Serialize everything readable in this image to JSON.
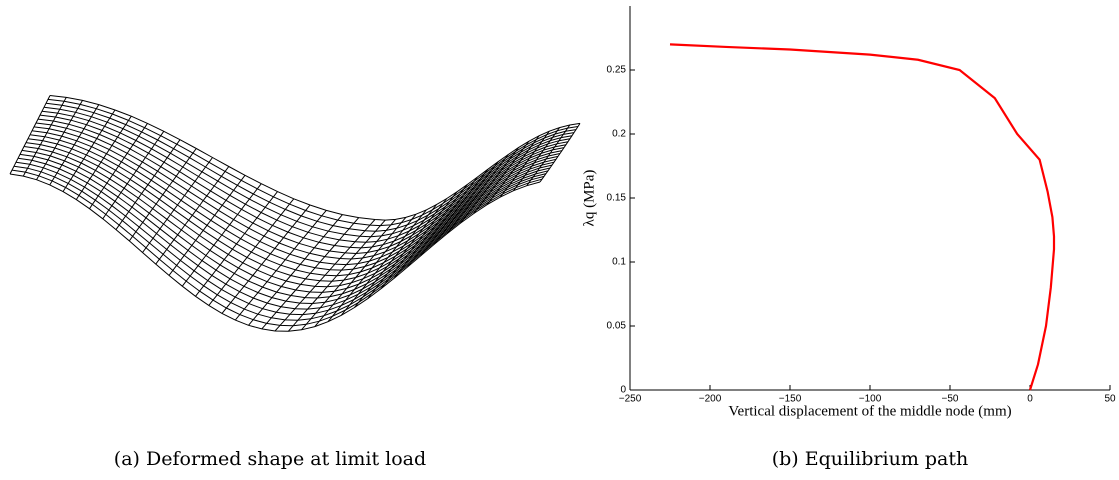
{
  "captions": [
    "(a)  Deformed shape at limit load",
    "(b)  Equilibrium path"
  ],
  "chart_data": {
    "type": "line",
    "xlabel": "Vertical displacement of the middle node (mm)",
    "ylabel": "λq (MPa)",
    "x": [
      0,
      5,
      10,
      13,
      15,
      15,
      14,
      11,
      6,
      -8,
      -22,
      -44,
      -70,
      -100,
      -150,
      -190,
      -225
    ],
    "series": [
      {
        "color": "#ff0000",
        "values": [
          0,
          0.02,
          0.05,
          0.08,
          0.11,
          0.12,
          0.135,
          0.155,
          0.18,
          0.2,
          0.228,
          0.25,
          0.258,
          0.262,
          0.266,
          0.268,
          0.27
        ]
      }
    ],
    "xlim": [
      -250,
      50
    ],
    "xticks": [
      {
        "value": -250,
        "label": "−250"
      },
      {
        "value": -200,
        "label": "−200"
      },
      {
        "value": -150,
        "label": "−150"
      },
      {
        "value": -100,
        "label": "−100"
      },
      {
        "value": -50,
        "label": "−50"
      },
      0,
      50
    ],
    "ylim": [
      0,
      0.3
    ],
    "yticks": [
      0,
      0.05,
      0.1,
      0.15,
      0.2,
      0.25
    ],
    "grid": false
  }
}
